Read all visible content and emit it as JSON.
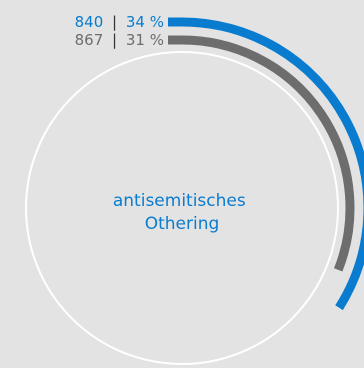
{
  "chart_data": {
    "type": "radial-bar",
    "center_label_lines": [
      "antisemitisches",
      "Othering"
    ],
    "series": [
      {
        "value": 840,
        "percent": 34,
        "label": "840",
        "percent_label": "34 %",
        "color": "#0a7ccf"
      },
      {
        "value": 867,
        "percent": 31,
        "label": "867",
        "percent_label": "31 %",
        "color": "#6d6d6d"
      }
    ],
    "separator": "|",
    "ring_color": "#ffffff",
    "background": "#e3e3e3"
  }
}
